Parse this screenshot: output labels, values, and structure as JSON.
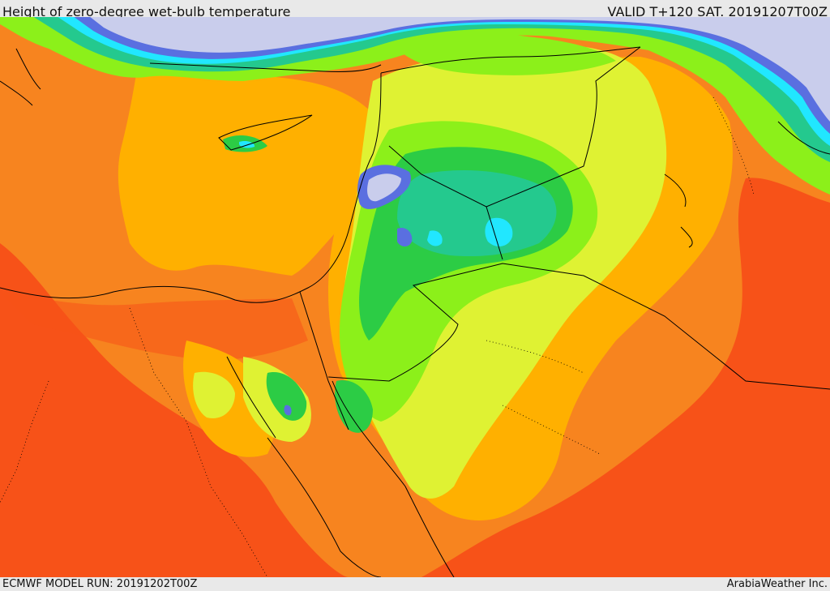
{
  "header": {
    "title": "Height of zero-degree wet-bulb temperature",
    "valid_time": "VALID T+120 SAT. 20191207T00Z"
  },
  "footer": {
    "model_run": "ECMWF MODEL RUN: 20191202T00Z",
    "credit": "ArabiaWeather Inc."
  },
  "colors": {
    "lowest_band": "#c9cdec",
    "blue_band": "#5a6fe0",
    "cyan_band": "#21e7ff",
    "teal_band": "#24c98e",
    "green_band": "#2ccc45",
    "lime_band": "#8cf01a",
    "yellow_band": "#dff233",
    "gold_band": "#ffb000",
    "orange_band": "#f7841f",
    "red_orange_band": "#f75218",
    "border_line": "#000000"
  }
}
